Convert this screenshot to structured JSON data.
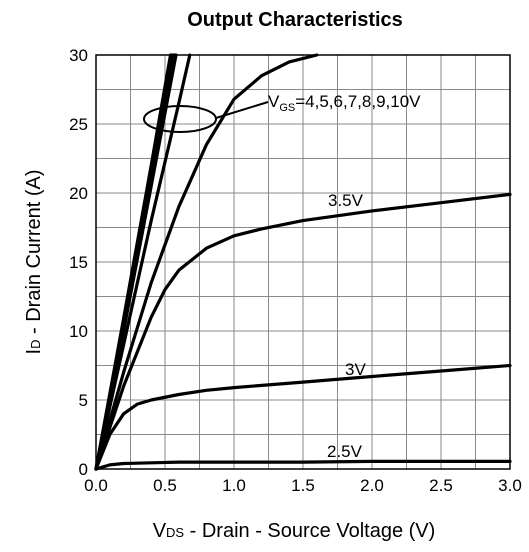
{
  "chart_data": {
    "type": "line",
    "title": "Output Characteristics",
    "xlabel_parts": {
      "main": "V",
      "sub": "DS",
      "rest": " - Drain - Source Voltage (V)"
    },
    "ylabel_parts": {
      "main": "I",
      "sub": "D",
      "rest": " - Drain Current (A)"
    },
    "xlim": [
      0,
      3.0
    ],
    "ylim": [
      0,
      30
    ],
    "xticks": [
      "0.0",
      "0.5",
      "1.0",
      "1.5",
      "2.0",
      "2.5",
      "3.0"
    ],
    "yticks": [
      "0",
      "5",
      "10",
      "15",
      "20",
      "25",
      "30"
    ],
    "grid": true,
    "series": [
      {
        "name": "2.5V",
        "x": [
          0,
          0.1,
          0.2,
          0.4,
          0.6,
          1.0,
          1.5,
          2.0,
          2.5,
          2.9,
          3.0
        ],
        "y": [
          0,
          0.3,
          0.4,
          0.45,
          0.5,
          0.5,
          0.5,
          0.55,
          0.55,
          0.55,
          0.55
        ]
      },
      {
        "name": "3V",
        "x": [
          0,
          0.1,
          0.2,
          0.3,
          0.4,
          0.6,
          0.8,
          1.0,
          1.5,
          2.0,
          2.5,
          3.0
        ],
        "y": [
          0,
          2.5,
          4.0,
          4.7,
          5.0,
          5.4,
          5.7,
          5.9,
          6.3,
          6.7,
          7.1,
          7.5
        ]
      },
      {
        "name": "3.5V",
        "x": [
          0,
          0.2,
          0.4,
          0.5,
          0.6,
          0.8,
          1.0,
          1.2,
          1.5,
          2.0,
          2.5,
          3.0
        ],
        "y": [
          0,
          6.0,
          11.0,
          13.0,
          14.4,
          16.0,
          16.9,
          17.4,
          18.0,
          18.7,
          19.3,
          19.9
        ]
      },
      {
        "name": "4V",
        "x": [
          0,
          0.2,
          0.4,
          0.6,
          0.8,
          1.0,
          1.2,
          1.4,
          1.6
        ],
        "y": [
          0,
          7.0,
          13.5,
          19.0,
          23.5,
          26.8,
          28.5,
          29.5,
          30.0
        ]
      },
      {
        "name": "5V",
        "x": [
          0,
          0.2,
          0.4,
          0.6,
          0.68
        ],
        "y": [
          0,
          9.0,
          18.0,
          26.5,
          30.0
        ]
      },
      {
        "name": "6V",
        "x": [
          0,
          0.2,
          0.4,
          0.58
        ],
        "y": [
          0,
          10.0,
          20.5,
          30.0
        ]
      },
      {
        "name": "7V",
        "x": [
          0,
          0.2,
          0.4,
          0.57
        ],
        "y": [
          0,
          10.3,
          21.0,
          30.0
        ]
      },
      {
        "name": "8V",
        "x": [
          0,
          0.2,
          0.4,
          0.56
        ],
        "y": [
          0,
          10.5,
          21.4,
          30.0
        ]
      },
      {
        "name": "9V",
        "x": [
          0,
          0.2,
          0.4,
          0.55
        ],
        "y": [
          0,
          10.7,
          21.7,
          30.0
        ]
      },
      {
        "name": "10V",
        "x": [
          0,
          0.2,
          0.4,
          0.54
        ],
        "y": [
          0,
          10.9,
          22.0,
          30.0
        ]
      }
    ],
    "annotations": {
      "vgs_prefix": "V",
      "vgs_sub": "GS",
      "vgs_rest": "=4,5,6,7,8,9,10V",
      "label_3_5": "3.5V",
      "label_3": "3V",
      "label_2_5": "2.5V"
    }
  }
}
